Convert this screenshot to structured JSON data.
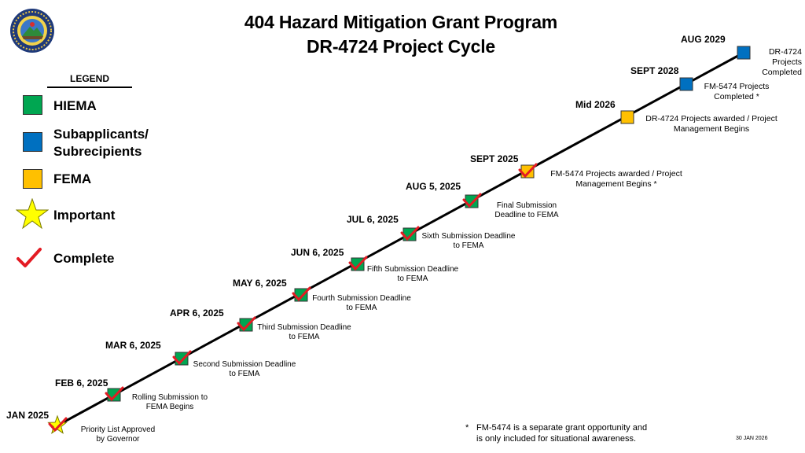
{
  "title": {
    "line1": "404 Hazard Mitigation Grant Program",
    "line2": "DR-4724 Project Cycle"
  },
  "seal": {
    "name": "agency-seal"
  },
  "legend": {
    "heading": "LEGEND",
    "hiema": {
      "label": "HIEMA",
      "color": "#00A651"
    },
    "subapplicants": {
      "line1": "Subapplicants/",
      "line2": "Subrecipients",
      "color": "#0070C0"
    },
    "fema": {
      "label": "FEMA",
      "color": "#FFC000"
    },
    "important": {
      "label": "Important",
      "icon": "star-icon",
      "color": "#FFFF00"
    },
    "complete": {
      "label": "Complete",
      "icon": "checkmark-icon",
      "color": "#E31B23"
    }
  },
  "milestones": [
    {
      "date": "JAN 2025",
      "desc1": "Priority List Approved",
      "desc2": "by Governor",
      "owner": "important",
      "complete": true
    },
    {
      "date": "FEB 6, 2025",
      "desc1": "Rolling Submission to",
      "desc2": "FEMA Begins",
      "owner": "hiema",
      "complete": true
    },
    {
      "date": "MAR 6, 2025",
      "desc1": "Second Submission Deadline",
      "desc2": "to FEMA",
      "owner": "hiema",
      "complete": true
    },
    {
      "date": "APR 6, 2025",
      "desc1": "Third Submission Deadline",
      "desc2": "to FEMA",
      "owner": "hiema",
      "complete": true
    },
    {
      "date": "MAY 6, 2025",
      "desc1": "Fourth Submission Deadline",
      "desc2": "to FEMA",
      "owner": "hiema",
      "complete": true
    },
    {
      "date": "JUN 6, 2025",
      "desc1": "Fifth Submission Deadline",
      "desc2": "to FEMA",
      "owner": "hiema",
      "complete": true
    },
    {
      "date": "JUL 6, 2025",
      "desc1": "Sixth Submission Deadline",
      "desc2": "to FEMA",
      "owner": "hiema",
      "complete": true
    },
    {
      "date": "AUG 5, 2025",
      "desc1": "Final Submission",
      "desc2": "Deadline to FEMA",
      "owner": "hiema",
      "complete": true
    },
    {
      "date": "SEPT 2025",
      "desc1": "FM-5474 Projects awarded / Project",
      "desc2": "Management Begins *",
      "owner": "fema",
      "complete": true
    },
    {
      "date": "Mid 2026",
      "desc1": "DR-4724 Projects awarded / Project",
      "desc2": "Management Begins",
      "owner": "fema",
      "complete": false
    },
    {
      "date": "SEPT 2028",
      "desc1": "FM-5474 Projects",
      "desc2": "Completed *",
      "owner": "subapplicants",
      "complete": false
    },
    {
      "date": "AUG 2029",
      "desc1": "DR-4724",
      "desc2": "Projects",
      "desc3": "Completed",
      "owner": "subapplicants",
      "complete": false
    }
  ],
  "footnote": {
    "marker": "*",
    "line1": "FM-5474 is a separate grant opportunity and",
    "line2": "is only included for situational awareness."
  },
  "date_stamp": "30 JAN 2026"
}
